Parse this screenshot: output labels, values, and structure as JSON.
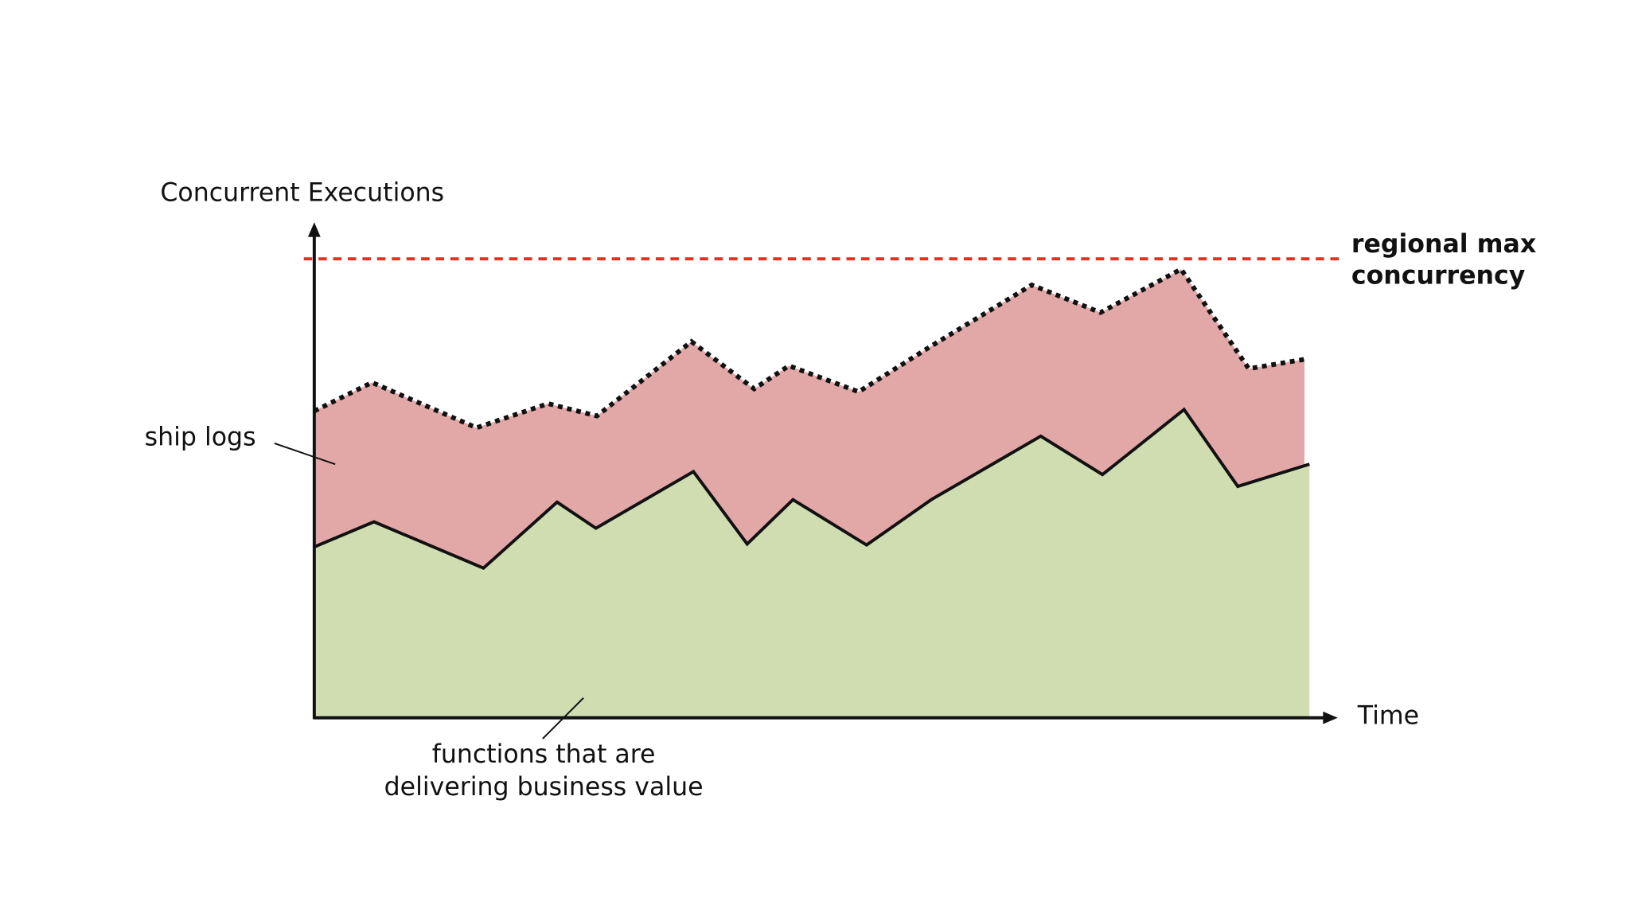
{
  "chart_data": {
    "type": "area",
    "y_label": "Concurrent Executions",
    "x_label": "Time",
    "xlim": [
      0,
      100
    ],
    "ylim": [
      0,
      100
    ],
    "grid": false,
    "series": [
      {
        "name": "ship logs",
        "color": "#e2a8a8",
        "line_color": "#111111",
        "line_style": "dotted",
        "x": [
          0,
          5.8,
          16.3,
          23.5,
          28.4,
          37.9,
          44.2,
          47.7,
          54.7,
          62,
          72.1,
          79,
          87.1,
          93.9,
          99.5
        ],
        "values": [
          62.3,
          68.1,
          58.9,
          63.8,
          61.3,
          76.4,
          66.8,
          71.5,
          66.2,
          75.5,
          87.9,
          82.3,
          91.1,
          70.9,
          72.8
        ]
      },
      {
        "name": [
          "functions that are",
          "delivering business value"
        ],
        "color": "#cfddb0",
        "line_color": "#111111",
        "line_style": "solid",
        "x": [
          0,
          6,
          17,
          24.4,
          28.3,
          38.1,
          43.5,
          48.1,
          55.5,
          62,
          73,
          79.2,
          87.4,
          92.8,
          100
        ],
        "values": [
          34.7,
          39.8,
          30.4,
          43.8,
          38.5,
          50,
          35.3,
          44.3,
          35.1,
          44.3,
          57.2,
          49.4,
          62.6,
          47,
          51.5
        ]
      }
    ],
    "threshold": {
      "value": 93.2,
      "color": "#e0321e",
      "label": [
        "regional max",
        "concurrency"
      ]
    }
  }
}
